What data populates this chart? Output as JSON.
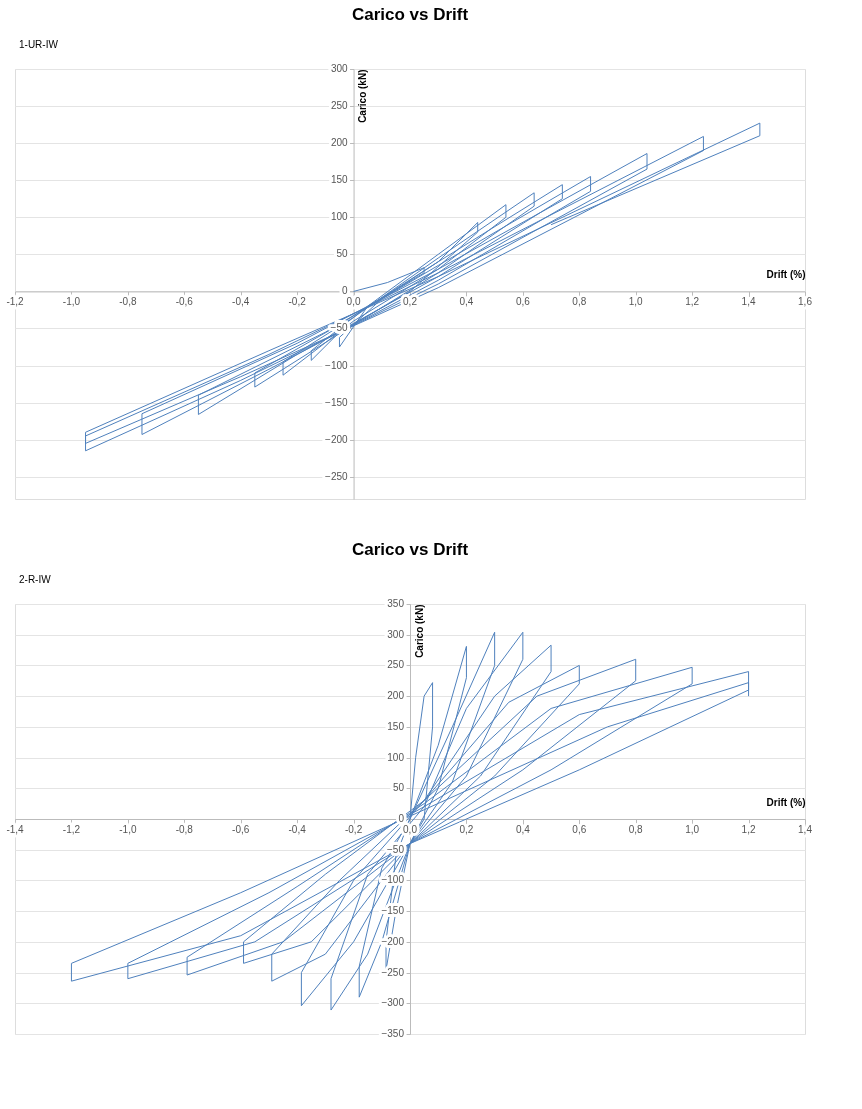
{
  "chart_data": [
    {
      "type": "line",
      "title": "Carico vs Drift",
      "xlabel": "Drift  (%)",
      "ylabel": "Carico (kN)",
      "annotations": [
        "1-UR-IW"
      ],
      "grid": "y",
      "xlim": [
        -1.2,
        1.6
      ],
      "xticks": [
        {
          "value": -1.2,
          "label": "-1,2"
        },
        {
          "value": -1.0,
          "label": "-1,0"
        },
        {
          "value": -0.8,
          "label": "-0,8"
        },
        {
          "value": -0.6,
          "label": "-0,6"
        },
        {
          "value": -0.4,
          "label": "-0,4"
        },
        {
          "value": -0.2,
          "label": "-0,2"
        },
        {
          "value": 0,
          "label": "0,0"
        },
        {
          "value": 0.2,
          "label": "0,2"
        },
        {
          "value": 0.4,
          "label": "0,4"
        },
        {
          "value": 0.6,
          "label": "0,6"
        },
        {
          "value": 0.8,
          "label": "0,8"
        },
        {
          "value": 1.0,
          "label": "1,0"
        },
        {
          "value": 1.2,
          "label": "1,2"
        },
        {
          "value": 1.4,
          "label": "1,4"
        },
        {
          "value": 1.6,
          "label": "1,6"
        }
      ],
      "ylim": [
        -280,
        300
      ],
      "yticks": [
        -250,
        -200,
        -150,
        -100,
        -50,
        0,
        50,
        100,
        150,
        200,
        250,
        300
      ],
      "series": [
        {
          "color": "#4f81bd",
          "x": [
            0,
            0.12,
            0.25,
            0.25,
            0.05,
            -0.05,
            -0.05,
            0.1,
            0.3,
            0.44,
            0.44,
            0.2,
            -0.05,
            -0.15,
            -0.15,
            0.05,
            0.3,
            0.54,
            0.54,
            0.3,
            0,
            -0.25,
            -0.25,
            0,
            0.3,
            0.64,
            0.64,
            0.3,
            0,
            -0.35,
            -0.35,
            -0.05,
            0.3,
            0.74,
            0.74,
            0.3,
            -0.2,
            -0.55,
            -0.55,
            -0.1,
            0.3,
            0.84,
            0.84,
            0.3,
            -0.3,
            -0.75,
            -0.75,
            -0.2,
            0.3,
            1.04,
            1.04,
            0.3,
            -0.4,
            -0.95,
            -0.95,
            -0.3,
            0.3,
            1.24,
            1.24,
            0.3,
            -0.4,
            -0.95,
            -0.95,
            -0.3,
            0.3,
            1.44,
            1.44,
            0.7
          ],
          "values": [
            0,
            12,
            32,
            25,
            -20,
            -75,
            -62,
            -10,
            40,
            93,
            80,
            0,
            -55,
            -93,
            -80,
            -20,
            50,
            117,
            100,
            30,
            -40,
            -113,
            -95,
            -35,
            45,
            133,
            115,
            25,
            -45,
            -129,
            -110,
            -45,
            40,
            144,
            125,
            20,
            -85,
            -166,
            -140,
            -55,
            35,
            155,
            135,
            15,
            -105,
            -193,
            -165,
            -70,
            30,
            186,
            165,
            10,
            -120,
            -215,
            -195,
            -85,
            25,
            209,
            190,
            5,
            -115,
            -205,
            -190,
            -80,
            20,
            227,
            210,
            90
          ]
        }
      ]
    },
    {
      "type": "line",
      "title": "Carico vs Drift",
      "xlabel": "Drift  (%)",
      "ylabel": "Carico (kN)",
      "annotations": [
        "2-R-IW"
      ],
      "grid": "y",
      "xlim": [
        -1.4,
        1.4
      ],
      "xticks": [
        {
          "value": -1.4,
          "label": "-1,4"
        },
        {
          "value": -1.2,
          "label": "-1,2"
        },
        {
          "value": -1.0,
          "label": "-1,0"
        },
        {
          "value": -0.8,
          "label": "-0,8"
        },
        {
          "value": -0.6,
          "label": "-0,6"
        },
        {
          "value": -0.4,
          "label": "-0,4"
        },
        {
          "value": -0.2,
          "label": "-0,2"
        },
        {
          "value": 0,
          "label": "0,0"
        },
        {
          "value": 0.2,
          "label": "0,2"
        },
        {
          "value": 0.4,
          "label": "0,4"
        },
        {
          "value": 0.6,
          "label": "0,6"
        },
        {
          "value": 0.8,
          "label": "0,8"
        },
        {
          "value": 1.0,
          "label": "1,0"
        },
        {
          "value": 1.2,
          "label": "1,2"
        },
        {
          "value": 1.4,
          "label": "1,4"
        }
      ],
      "ylim": [
        -350,
        350
      ],
      "yticks": [
        -350,
        -300,
        -250,
        -200,
        -150,
        -100,
        -50,
        0,
        50,
        100,
        150,
        200,
        250,
        300,
        350
      ],
      "series": [
        {
          "color": "#4f81bd",
          "x": [
            0,
            0.02,
            0.05,
            0.08,
            0.08,
            0.05,
            0,
            -0.05,
            -0.085,
            -0.085,
            -0.05,
            0,
            0.1,
            0.2,
            0.2,
            0.1,
            0,
            -0.1,
            -0.18,
            -0.18,
            -0.1,
            0,
            0.15,
            0.3,
            0.3,
            0.15,
            0,
            -0.15,
            -0.28,
            -0.28,
            -0.15,
            0.05,
            0.2,
            0.4,
            0.4,
            0.2,
            0,
            -0.2,
            -0.385,
            -0.385,
            -0.2,
            0.05,
            0.3,
            0.5,
            0.5,
            0.25,
            0,
            -0.3,
            -0.49,
            -0.49,
            -0.25,
            0.05,
            0.35,
            0.6,
            0.6,
            0.3,
            0,
            -0.35,
            -0.59,
            -0.59,
            -0.3,
            0.05,
            0.45,
            0.8,
            0.8,
            0.4,
            0,
            -0.45,
            -0.79,
            -0.79,
            -0.4,
            0.05,
            0.5,
            1.0,
            1.0,
            0.5,
            0,
            -0.55,
            -1.0,
            -1.0,
            -0.5,
            0.05,
            0.6,
            1.2,
            1.2,
            0.6,
            0,
            -0.6,
            -1.2,
            -1.2,
            -0.6,
            0.05,
            0.7,
            1.2,
            1.2
          ],
          "values": [
            0,
            100,
            200,
            222,
            150,
            0,
            -40,
            -150,
            -246,
            -200,
            -60,
            0,
            120,
            281,
            230,
            50,
            -40,
            -200,
            -290,
            -240,
            -80,
            0,
            150,
            304,
            250,
            60,
            -40,
            -220,
            -311,
            -260,
            -90,
            20,
            180,
            304,
            260,
            70,
            -40,
            -200,
            -304,
            -250,
            -100,
            30,
            200,
            283,
            240,
            70,
            -40,
            -220,
            -264,
            -220,
            -100,
            30,
            190,
            250,
            220,
            70,
            -40,
            -200,
            -235,
            -200,
            -90,
            30,
            200,
            260,
            225,
            80,
            -40,
            -200,
            -254,
            -225,
            -110,
            25,
            180,
            247,
            220,
            80,
            -40,
            -200,
            -260,
            -235,
            -120,
            20,
            170,
            240,
            210,
            80,
            -40,
            -190,
            -264,
            -235,
            -120,
            15,
            150,
            222,
            200
          ]
        }
      ]
    }
  ]
}
